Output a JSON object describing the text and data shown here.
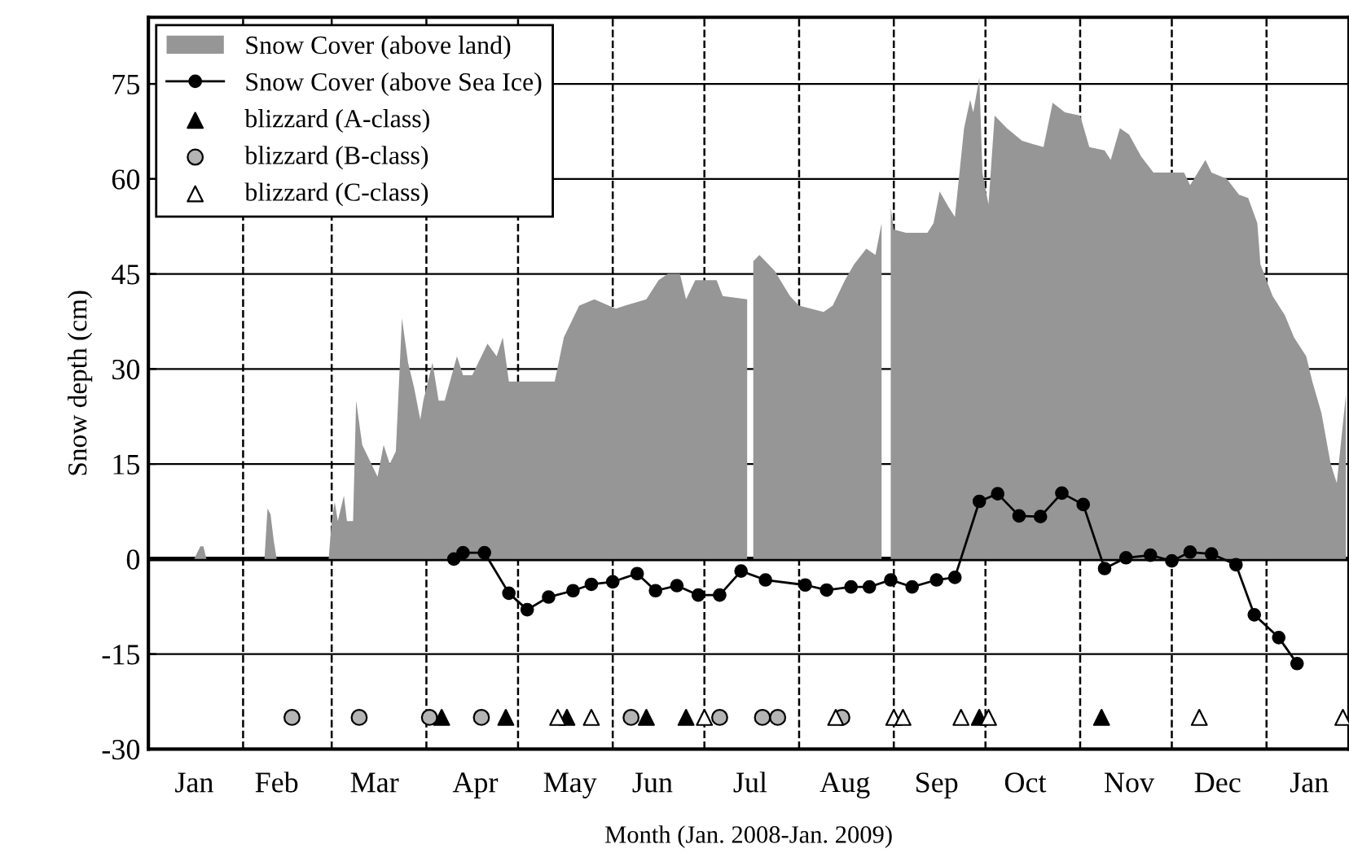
{
  "chart_data": {
    "type": "area",
    "xlabel": "Month (Jan. 2008-Jan. 2009)",
    "ylabel": "Snow depth (cm)",
    "xlim": [
      "2008-01-01",
      "2009-01-28"
    ],
    "xticks": [
      {
        "value": "2008-01-16",
        "label": "Jan"
      },
      {
        "value": "2008-02-12",
        "label": "Feb"
      },
      {
        "value": "2008-03-15",
        "label": "Mar"
      },
      {
        "value": "2008-04-17",
        "label": "Apr"
      },
      {
        "value": "2008-05-18",
        "label": "May"
      },
      {
        "value": "2008-06-14",
        "label": "Jun"
      },
      {
        "value": "2008-07-16",
        "label": "Jul"
      },
      {
        "value": "2008-08-16",
        "label": "Aug"
      },
      {
        "value": "2008-09-15",
        "label": "Sep"
      },
      {
        "value": "2008-10-14",
        "label": "Oct"
      },
      {
        "value": "2008-11-17",
        "label": "Nov"
      },
      {
        "value": "2008-12-16",
        "label": "Dec"
      },
      {
        "value": "2009-01-15",
        "label": "Jan"
      }
    ],
    "ylim": [
      -30,
      85.5
    ],
    "yticks": [
      -30,
      -15,
      0,
      15,
      30,
      45,
      60,
      75
    ],
    "grid": "y",
    "legend": "top left",
    "ref_lines": [
      {
        "axis": "y",
        "value": 0,
        "color": "#000000",
        "line_style": "solid"
      },
      {
        "axis": "x",
        "value": "2008-02-01",
        "color": "#000000",
        "line_style": "dashed"
      },
      {
        "axis": "x",
        "value": "2008-03-01",
        "color": "#000000",
        "line_style": "dashed"
      },
      {
        "axis": "x",
        "value": "2008-04-01",
        "color": "#000000",
        "line_style": "dashed"
      },
      {
        "axis": "x",
        "value": "2008-05-01",
        "color": "#000000",
        "line_style": "dashed"
      },
      {
        "axis": "x",
        "value": "2008-06-01",
        "color": "#000000",
        "line_style": "dashed"
      },
      {
        "axis": "x",
        "value": "2008-07-01",
        "color": "#000000",
        "line_style": "dashed"
      },
      {
        "axis": "x",
        "value": "2008-08-01",
        "color": "#000000",
        "line_style": "dashed"
      },
      {
        "axis": "x",
        "value": "2008-09-01",
        "color": "#000000",
        "line_style": "dashed"
      },
      {
        "axis": "x",
        "value": "2008-10-01",
        "color": "#000000",
        "line_style": "dashed"
      },
      {
        "axis": "x",
        "value": "2008-11-01",
        "color": "#000000",
        "line_style": "dashed"
      },
      {
        "axis": "x",
        "value": "2008-12-01",
        "color": "#000000",
        "line_style": "dashed"
      },
      {
        "axis": "x",
        "value": "2009-01-01",
        "color": "#000000",
        "line_style": "dashed"
      }
    ],
    "series": [
      {
        "name": "Snow Cover (above land)",
        "color": "#969696",
        "x": [
          "2008-01-01",
          "2008-01-16",
          "2008-01-18",
          "2008-01-19",
          "2008-01-20",
          "2008-02-08",
          "2008-02-09",
          "2008-02-10",
          "2008-02-11",
          "2008-02-12",
          "2008-02-29",
          "2008-03-01",
          "2008-03-02",
          "2008-03-03",
          "2008-03-05",
          "2008-03-06",
          "2008-03-08",
          "2008-03-09",
          "2008-03-11",
          "2008-03-12",
          "2008-03-14",
          "2008-03-16",
          "2008-03-18",
          "2008-03-20",
          "2008-03-22",
          "2008-03-24",
          "2008-03-26",
          "2008-03-28",
          "2008-03-30",
          "2008-03-31",
          "2008-04-03",
          "2008-04-05",
          "2008-04-07",
          "2008-04-11",
          "2008-04-13",
          "2008-04-16",
          "2008-04-21",
          "2008-04-24",
          "2008-04-26",
          "2008-04-28",
          "2008-05-13",
          "2008-05-16",
          "2008-05-21",
          "2008-05-26",
          "2008-06-02",
          "2008-06-05",
          "2008-06-12",
          "2008-06-16",
          "2008-06-19",
          "2008-06-23",
          "2008-06-25",
          "2008-06-28",
          "2008-07-05",
          "2008-07-07",
          "2008-07-15",
          "2008-07-16",
          "2008-07-17",
          "2008-07-19",
          "2008-07-24",
          "2008-07-29",
          "2008-08-01",
          "2008-08-09",
          "2008-08-12",
          "2008-08-16",
          "2008-08-19",
          "2008-08-23",
          "2008-08-26",
          "2008-08-28",
          "2008-08-29",
          "2008-08-31",
          "2008-09-01",
          "2008-09-05",
          "2008-09-12",
          "2008-09-14",
          "2008-09-16",
          "2008-09-19",
          "2008-09-21",
          "2008-09-24",
          "2008-09-26",
          "2008-09-27",
          "2008-09-29",
          "2008-09-30",
          "2008-10-02",
          "2008-10-04",
          "2008-10-08",
          "2008-10-13",
          "2008-10-20",
          "2008-10-23",
          "2008-10-27",
          "2008-11-01",
          "2008-11-04",
          "2008-11-09",
          "2008-11-11",
          "2008-11-14",
          "2008-11-17",
          "2008-11-21",
          "2008-11-25",
          "2008-12-05",
          "2008-12-07",
          "2008-12-12",
          "2008-12-14",
          "2008-12-19",
          "2008-12-23",
          "2008-12-26",
          "2008-12-29",
          "2008-12-30",
          "2009-01-03",
          "2009-01-07",
          "2009-01-10",
          "2009-01-14",
          "2009-01-16",
          "2009-01-19",
          "2009-01-22",
          "2009-01-24",
          "2009-01-27"
        ],
        "values": [
          0,
          0,
          2,
          2,
          0,
          0,
          8,
          7,
          3,
          0,
          0,
          6,
          9,
          6,
          10,
          6,
          6,
          25,
          18,
          17,
          15,
          13,
          18,
          15,
          17,
          38,
          31,
          27,
          22,
          25,
          31,
          25,
          25,
          32,
          29,
          29,
          34,
          32,
          35,
          28,
          28,
          35,
          40,
          41,
          39.5,
          40,
          41,
          44,
          45,
          45,
          41,
          44,
          44,
          41.5,
          41,
          null,
          47,
          48,
          45.5,
          41.5,
          40,
          39,
          40,
          44,
          46.5,
          49,
          48,
          53,
          null,
          55.5,
          52,
          51.5,
          51.5,
          53,
          58,
          55.5,
          54,
          68,
          72.5,
          70.5,
          76,
          61,
          56,
          70,
          68,
          66,
          65,
          72,
          70.5,
          70,
          65,
          64.5,
          63,
          68,
          67,
          63.5,
          61,
          61,
          59,
          63,
          61,
          60,
          57.5,
          57,
          53,
          46.5,
          41.5,
          38.5,
          35,
          32,
          28,
          23,
          15,
          12,
          26
        ]
      },
      {
        "name": "Snow Cover (above Sea Ice)",
        "type": "line",
        "color": "#000000",
        "marker": "circle",
        "line_style": "solid",
        "x": [
          "2008-04-10",
          "2008-04-13",
          "2008-04-20",
          "2008-04-28",
          "2008-05-04",
          "2008-05-11",
          "2008-05-19",
          "2008-05-25",
          "2008-06-01",
          "2008-06-09",
          "2008-06-15",
          "2008-06-22",
          "2008-06-29",
          "2008-07-06",
          "2008-07-13",
          "2008-07-21",
          "2008-08-03",
          "2008-08-10",
          "2008-08-18",
          "2008-08-24",
          "2008-08-31",
          "2008-09-07",
          "2008-09-15",
          "2008-09-21",
          "2008-09-29",
          "2008-10-05",
          "2008-10-12",
          "2008-10-19",
          "2008-10-26",
          "2008-11-02",
          "2008-11-09",
          "2008-11-16",
          "2008-11-24",
          "2008-12-01",
          "2008-12-07",
          "2008-12-14",
          "2008-12-22",
          "2008-12-28",
          "2009-01-05",
          "2009-01-11"
        ],
        "values": [
          0,
          1,
          1,
          -5.4,
          -8,
          -6,
          -5,
          -4,
          -3.6,
          -2.3,
          -5,
          -4.2,
          -5.7,
          -5.7,
          -1.9,
          -3.3,
          -4.1,
          -4.9,
          -4.4,
          -4.4,
          -3.3,
          -4.4,
          -3.3,
          -2.9,
          9.1,
          10.3,
          6.8,
          6.7,
          10.4,
          8.6,
          -1.5,
          0.2,
          0.6,
          -0.3,
          1.1,
          0.8,
          -0.9,
          -8.8,
          -12.4,
          -16.5
        ]
      },
      {
        "name": "blizzard (A-class)",
        "type": "scatter",
        "color": "#000000",
        "marker": "triangle",
        "x": [
          "2008-04-06",
          "2008-04-27",
          "2008-05-17",
          "2008-06-12",
          "2008-06-25",
          "2008-09-29",
          "2008-11-08"
        ],
        "values": [
          -25,
          -25,
          -25,
          -25,
          -25,
          -25,
          -25
        ]
      },
      {
        "name": "blizzard (B-class)",
        "type": "scatter",
        "color": "#b4b4b4",
        "marker": "circle",
        "x": [
          "2008-02-17",
          "2008-03-10",
          "2008-04-02",
          "2008-04-19",
          "2008-06-07",
          "2008-07-06",
          "2008-07-20",
          "2008-07-25",
          "2008-08-15"
        ],
        "values": [
          -25,
          -25,
          -25,
          -25,
          -25,
          -25,
          -25,
          -25,
          -25
        ]
      },
      {
        "name": "blizzard (C-class)",
        "type": "scatter",
        "color": "#ffffff",
        "marker": "triangle",
        "x": [
          "2008-05-14",
          "2008-05-25",
          "2008-07-01",
          "2008-08-13",
          "2008-09-01",
          "2008-09-04",
          "2008-09-23",
          "2008-10-02",
          "2008-12-10",
          "2009-01-26"
        ],
        "values": [
          -25,
          -25,
          -25,
          -25,
          -25,
          -25,
          -25,
          -25,
          -25,
          -25
        ]
      }
    ]
  }
}
